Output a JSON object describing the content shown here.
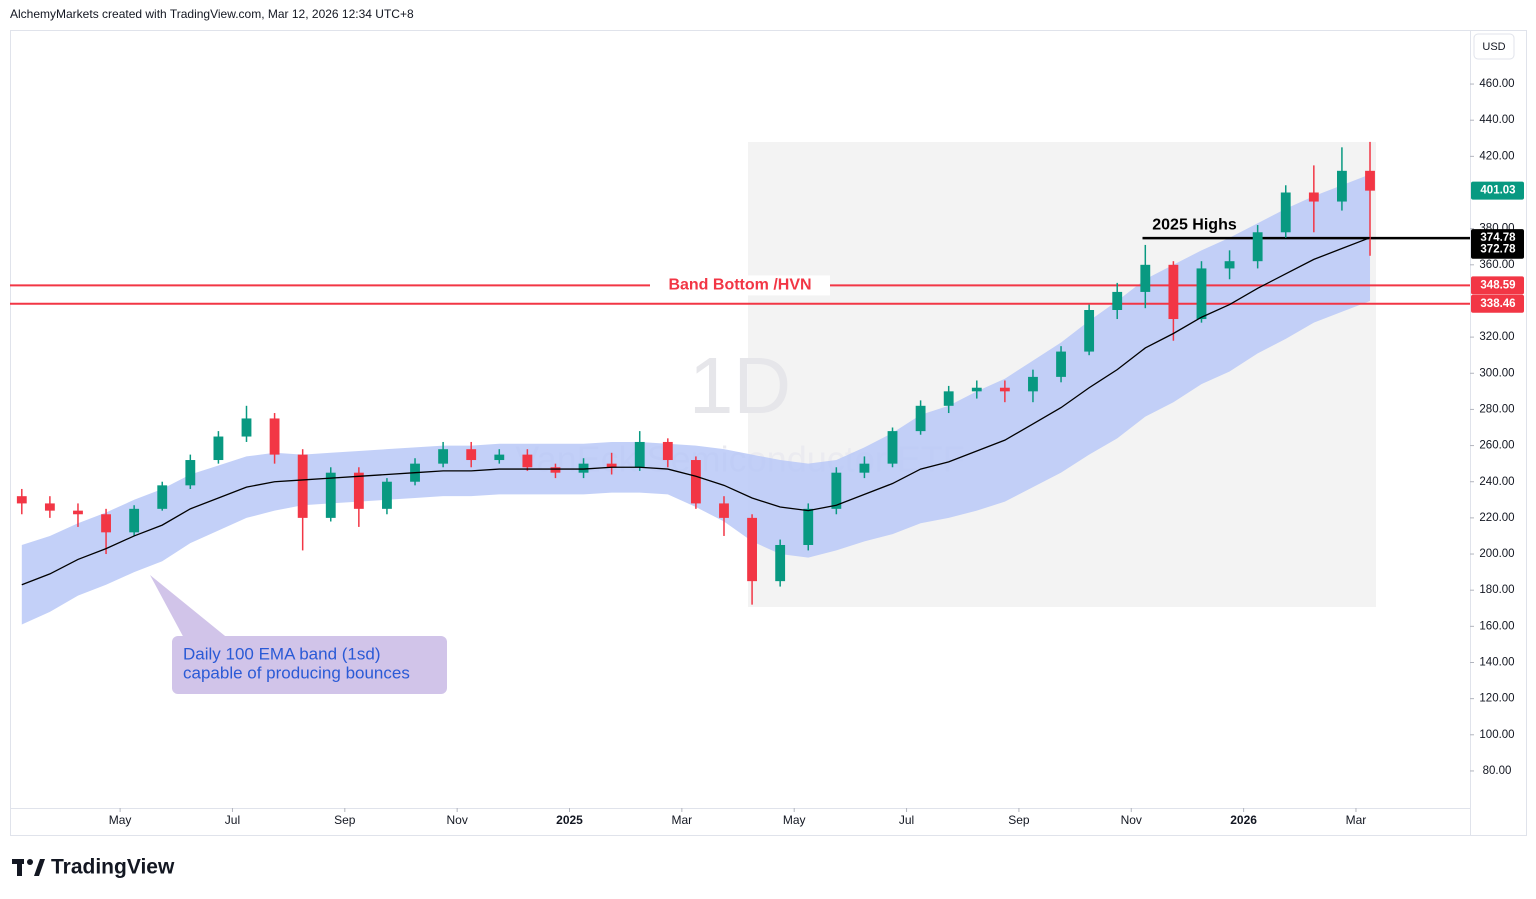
{
  "header": "AlchemyMarkets created with TradingView.com, Mar 12, 2026 12:34 UTC+8",
  "footer": "TradingView",
  "chart_data": {
    "type": "candlestick",
    "currency": "USD",
    "watermark": "1D",
    "symbol_name": "VanEck Semiconductor ETF",
    "xlim": [
      2.04,
      28.03
    ],
    "ylim": [
      59.5,
      489.9
    ],
    "xticks": [
      {
        "value": 4,
        "label": "May"
      },
      {
        "value": 6,
        "label": "Jul"
      },
      {
        "value": 8,
        "label": "Sep"
      },
      {
        "value": 10,
        "label": "Nov"
      },
      {
        "value": 12,
        "label": "2025"
      },
      {
        "value": 14,
        "label": "Mar"
      },
      {
        "value": 16,
        "label": "May"
      },
      {
        "value": 18,
        "label": "Jul"
      },
      {
        "value": 20,
        "label": "Sep"
      },
      {
        "value": 22,
        "label": "Nov"
      },
      {
        "value": 24,
        "label": "2026"
      },
      {
        "value": 26,
        "label": "Mar"
      }
    ],
    "yticks": [
      {
        "value": 80,
        "label": "80.00"
      },
      {
        "value": 100,
        "label": "100.00"
      },
      {
        "value": 120,
        "label": "120.00"
      },
      {
        "value": 140,
        "label": "140.00"
      },
      {
        "value": 160,
        "label": "160.00"
      },
      {
        "value": 180,
        "label": "180.00"
      },
      {
        "value": 200,
        "label": "200.00"
      },
      {
        "value": 220,
        "label": "220.00"
      },
      {
        "value": 240,
        "label": "240.00"
      },
      {
        "value": 260,
        "label": "260.00"
      },
      {
        "value": 280,
        "label": "280.00"
      },
      {
        "value": 300,
        "label": "300.00"
      },
      {
        "value": 320,
        "label": "320.00"
      },
      {
        "value": 360,
        "label": "360.00"
      },
      {
        "value": 380,
        "label": "380.00"
      },
      {
        "value": 420,
        "label": "420.00"
      },
      {
        "value": 440,
        "label": "440.00"
      },
      {
        "value": 460,
        "label": "460.00"
      }
    ],
    "grid": false,
    "up_color": "#089981",
    "down_color": "#f23645",
    "x": [
      2.25,
      2.75,
      3.25,
      3.75,
      4.25,
      4.75,
      5.25,
      5.75,
      6.25,
      6.75,
      7.25,
      7.75,
      8.25,
      8.75,
      9.25,
      9.75,
      10.25,
      10.75,
      11.25,
      11.75,
      12.25,
      12.75,
      13.25,
      13.75,
      14.25,
      14.75,
      15.25,
      15.75,
      16.25,
      16.75,
      17.25,
      17.75,
      18.25,
      18.75,
      19.25,
      19.75,
      20.25,
      20.75,
      21.25,
      21.75,
      22.25,
      22.75,
      23.25,
      23.75,
      24.25,
      24.75,
      25.25,
      25.75,
      26.25
    ],
    "open": [
      232,
      228,
      224,
      222,
      212,
      225,
      238,
      252,
      265,
      275,
      255,
      220,
      245,
      225,
      240,
      250,
      258,
      252,
      255,
      248,
      245,
      250,
      248,
      262,
      252,
      228,
      220,
      185,
      205,
      225,
      245,
      250,
      268,
      282,
      290,
      292,
      290,
      298,
      312,
      335,
      345,
      360,
      330,
      358,
      362,
      378,
      400,
      395,
      412
    ],
    "high": [
      236,
      232,
      228,
      225,
      227,
      240,
      255,
      268,
      282,
      278,
      258,
      248,
      248,
      242,
      253,
      262,
      262,
      258,
      258,
      250,
      253,
      256,
      268,
      264,
      254,
      232,
      222,
      208,
      228,
      248,
      254,
      270,
      285,
      293,
      296,
      296,
      302,
      315,
      338,
      350,
      371,
      362,
      362,
      368,
      382,
      404,
      415,
      425,
      428
    ],
    "low": [
      222,
      220,
      215,
      200,
      210,
      224,
      236,
      250,
      262,
      250,
      202,
      218,
      215,
      222,
      238,
      248,
      248,
      250,
      246,
      242,
      242,
      244,
      246,
      248,
      225,
      210,
      172,
      182,
      202,
      222,
      242,
      248,
      266,
      278,
      286,
      284,
      284,
      295,
      310,
      330,
      336,
      318,
      328,
      352,
      358,
      375,
      378,
      390,
      365
    ],
    "close": [
      228,
      224,
      222,
      212,
      225,
      238,
      252,
      265,
      275,
      255,
      220,
      245,
      225,
      240,
      250,
      258,
      252,
      255,
      248,
      245,
      250,
      248,
      262,
      252,
      228,
      220,
      185,
      205,
      225,
      245,
      250,
      268,
      282,
      290,
      292,
      290,
      298,
      312,
      335,
      345,
      360,
      330,
      358,
      362,
      378,
      400,
      395,
      412,
      401.03
    ],
    "ema": [
      183,
      189,
      197,
      203,
      210,
      216,
      225,
      231,
      237,
      240,
      241,
      242,
      243,
      244,
      245,
      246,
      246,
      247,
      247,
      247,
      247,
      248,
      248,
      247,
      243,
      238,
      231,
      226,
      224,
      227,
      233,
      239,
      247,
      251,
      257,
      263,
      272,
      281,
      292,
      302,
      314,
      322,
      331,
      338,
      347,
      355,
      363,
      369,
      375
    ],
    "ema_color": "#000000",
    "band_upper": [
      205,
      210,
      217,
      223,
      230,
      236,
      244,
      249,
      254,
      256,
      255,
      256,
      257,
      258,
      259,
      260,
      260,
      261,
      261,
      261,
      261,
      262,
      262,
      261,
      260,
      258,
      255,
      252,
      250,
      252,
      259,
      267,
      277,
      282,
      290,
      297,
      307,
      317,
      329,
      340,
      352,
      360,
      368,
      375,
      383,
      391,
      398,
      404,
      410
    ],
    "band_lower": [
      161,
      168,
      177,
      183,
      190,
      196,
      206,
      213,
      220,
      224,
      227,
      228,
      229,
      230,
      231,
      232,
      232,
      233,
      233,
      233,
      233,
      234,
      234,
      233,
      226,
      218,
      207,
      200,
      198,
      202,
      207,
      211,
      217,
      220,
      224,
      229,
      237,
      245,
      255,
      264,
      276,
      284,
      294,
      301,
      311,
      319,
      328,
      334,
      340
    ],
    "band_color": "#b9c8f7",
    "hlines": [
      {
        "value": 348.59,
        "color": "#f23645",
        "text": "Band Bottom /HVN"
      },
      {
        "value": 338.46,
        "color": "#f23645"
      },
      {
        "value": 374.78,
        "color": "#000000",
        "text": "2025 Highs",
        "from": 22.2
      }
    ],
    "price_labels": [
      {
        "value": 401.03,
        "color": "#089981"
      },
      {
        "value": 372.78,
        "color": "#000000"
      }
    ],
    "callout": [
      "Daily 100 EMA band (1sd)",
      "capable of producing bounces"
    ]
  }
}
